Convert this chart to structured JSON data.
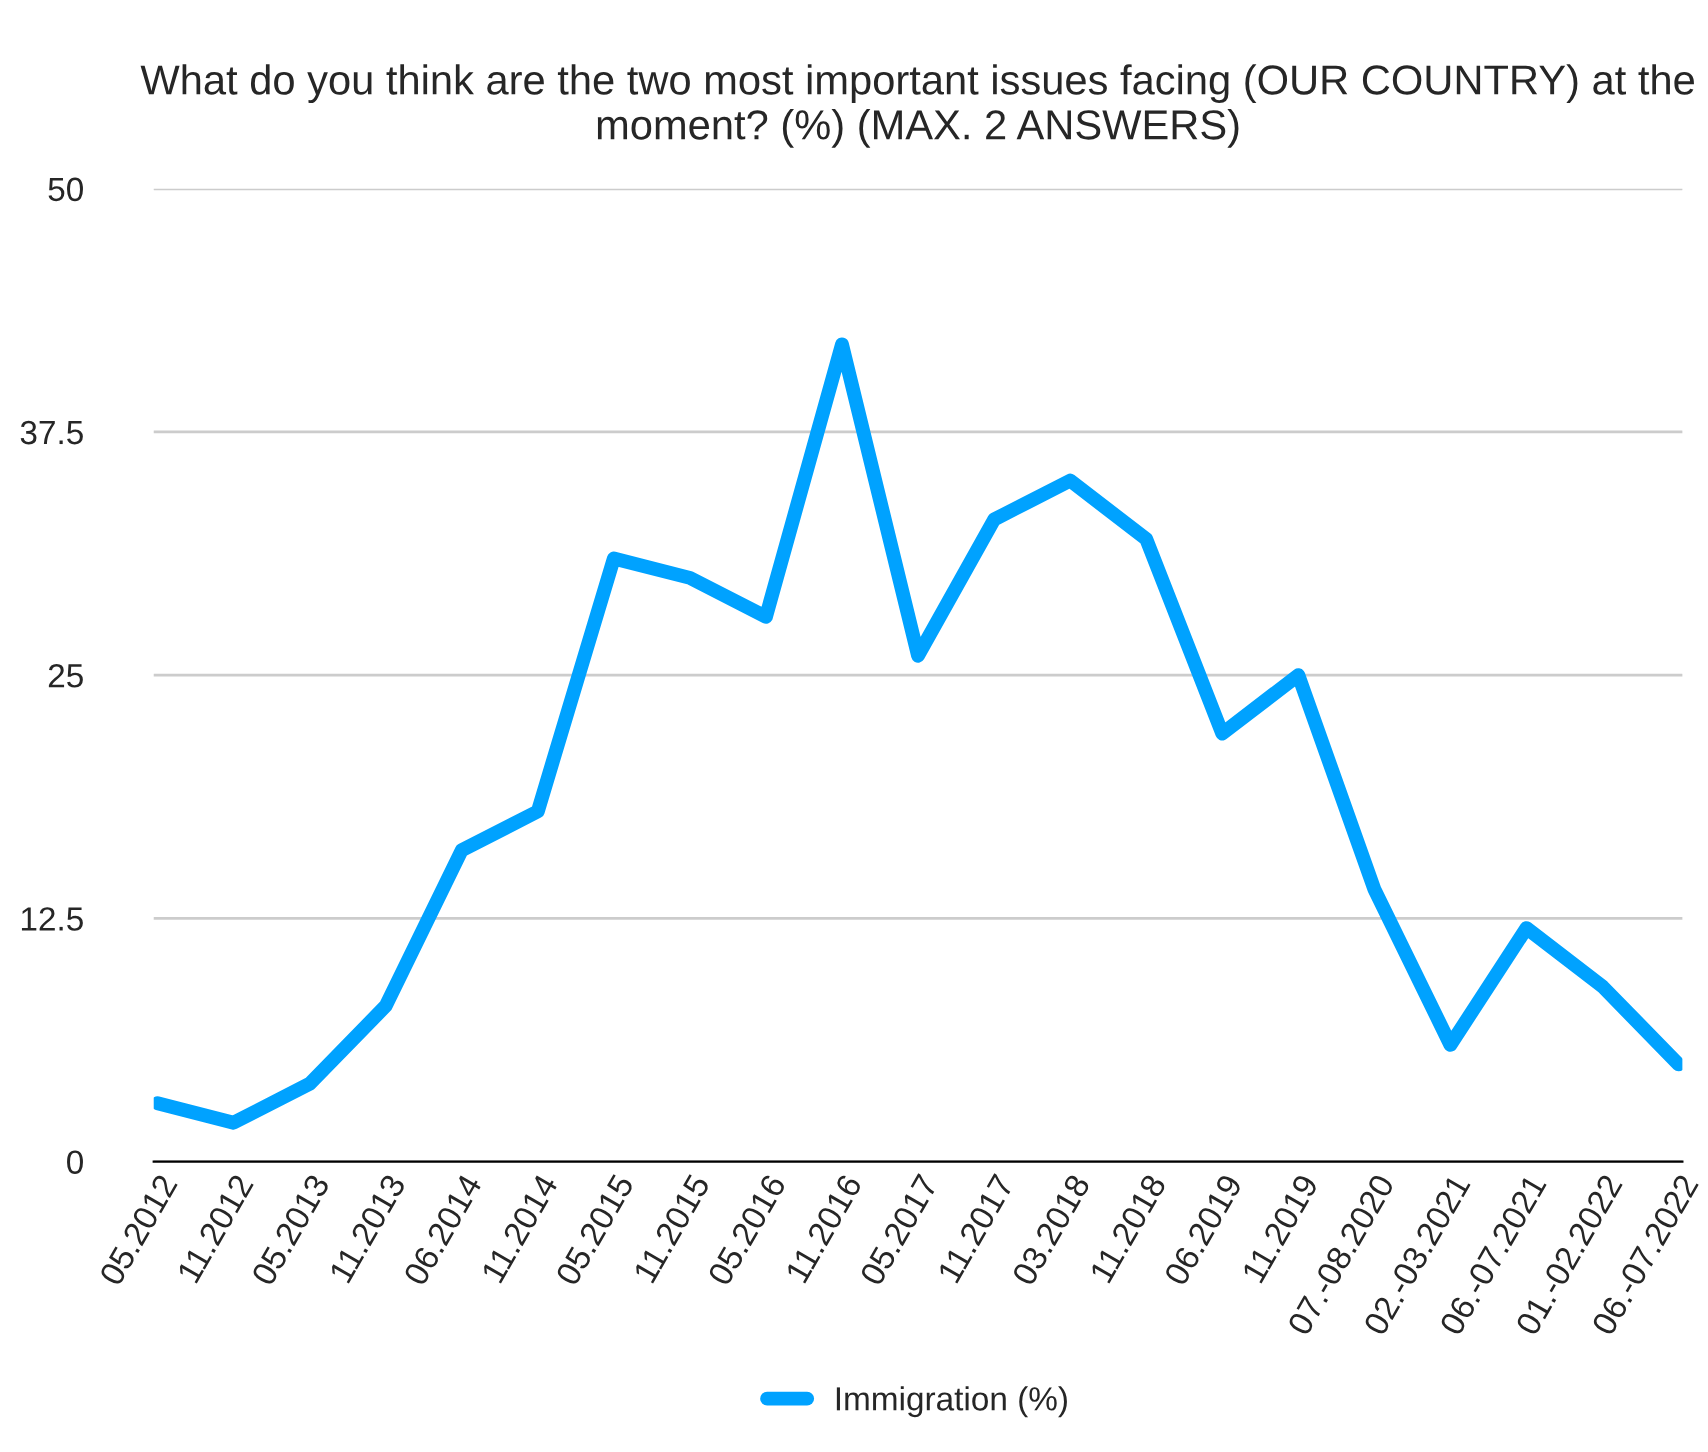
{
  "chart_data": {
    "type": "line",
    "title": "What do you think are the two most important issues facing (OUR COUNTRY) at the moment? (%) (MAX. 2 ANSWERS)",
    "categories": [
      "05.2012",
      "11.2012",
      "05.2013",
      "11.2013",
      "06.2014",
      "11.2014",
      "05.2015",
      "11.2015",
      "05.2016",
      "11.2016",
      "05.2017",
      "11.2017",
      "03.2018",
      "11.2018",
      "06.2019",
      "11.2019",
      "07.-08.2020",
      "02.-03.2021",
      "06.-07.2021",
      "01.-02.2022",
      "06.-07.2022"
    ],
    "series": [
      {
        "name": "Immigration (%)",
        "color": "#00a2ff",
        "values": [
          3,
          2,
          4,
          8,
          16,
          18,
          31,
          30,
          28,
          42,
          26,
          33,
          35,
          32,
          22,
          25,
          14,
          6,
          12,
          9,
          5
        ]
      }
    ],
    "ylim": [
      0,
      50
    ],
    "yticks": [
      0,
      12.5,
      25,
      37.5,
      50
    ],
    "grid": "y",
    "legend": "bottom",
    "marker": "none",
    "line_style": "solid"
  }
}
